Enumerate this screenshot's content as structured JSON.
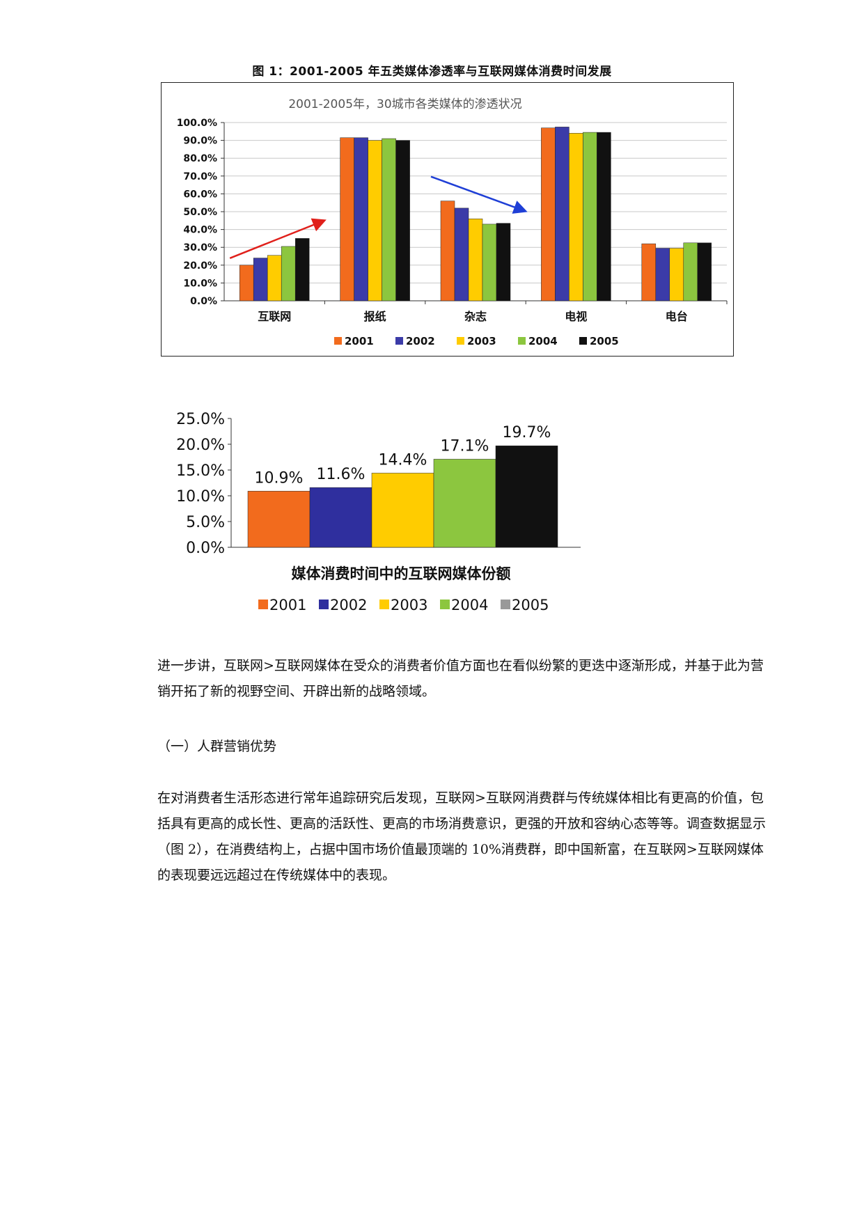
{
  "figure_caption": "图 1：2001-2005 年五类媒体渗透率与互联网媒体消费时间发展",
  "chart_data": [
    {
      "type": "bar",
      "title": "2001-2005年，30城市各类媒体的渗透状况",
      "categories": [
        "互联网",
        "报纸",
        "杂志",
        "电视",
        "电台"
      ],
      "series": [
        {
          "name": "2001",
          "color": "#f26b1d",
          "values": [
            20.0,
            91.5,
            56.0,
            97.0,
            32.0
          ]
        },
        {
          "name": "2002",
          "color": "#3b3ba8",
          "values": [
            24.0,
            91.5,
            52.0,
            97.5,
            29.5
          ]
        },
        {
          "name": "2003",
          "color": "#ffcc00",
          "values": [
            25.5,
            90.0,
            46.0,
            94.0,
            29.5
          ]
        },
        {
          "name": "2004",
          "color": "#8cc63f",
          "values": [
            30.5,
            91.0,
            43.0,
            94.5,
            32.5
          ]
        },
        {
          "name": "2005",
          "color": "#111111",
          "values": [
            35.0,
            90.0,
            43.5,
            94.5,
            32.5
          ]
        }
      ],
      "ylim": [
        0,
        100
      ],
      "yticks": [
        "0.0%",
        "10.0%",
        "20.0%",
        "30.0%",
        "40.0%",
        "50.0%",
        "60.0%",
        "70.0%",
        "80.0%",
        "90.0%",
        "100.0%"
      ],
      "grid": true,
      "legend": "bottom",
      "annotations": [
        {
          "category": "互联网",
          "direction": "up",
          "color": "#e0201b"
        },
        {
          "category": "杂志",
          "direction": "down",
          "color": "#1f3fd6"
        }
      ]
    },
    {
      "type": "bar",
      "xlabel": "媒体消费时间中的互联网媒体份额",
      "categories": [
        "2001",
        "2002",
        "2003",
        "2004",
        "2005"
      ],
      "values": [
        10.9,
        11.6,
        14.4,
        17.1,
        19.7
      ],
      "data_labels": [
        "10.9%",
        "11.6%",
        "14.4%",
        "17.1%",
        "19.7%"
      ],
      "colors": [
        "#f26b1d",
        "#2f2f9e",
        "#ffcc00",
        "#8cc63f",
        "#111111"
      ],
      "legend_colors": [
        "#f26b1d",
        "#2f2f9e",
        "#ffcc00",
        "#8cc63f",
        "#999999"
      ],
      "ylim": [
        0,
        25
      ],
      "yticks": [
        "0.0%",
        "5.0%",
        "10.0%",
        "15.0%",
        "20.0%",
        "25.0%"
      ],
      "grid": false,
      "legend": "bottom"
    }
  ],
  "paragraphs": {
    "p1": "进一步讲，互联网>互联网媒体在受众的消费者价值方面也在看似纷繁的更迭中逐渐形成，并基于此为营销开拓了新的视野空间、开辟出新的战略领域。",
    "heading": "（一）人群营销优势",
    "p2": "在对消费者生活形态进行常年追踪研究后发现，互联网>互联网消费群与传统媒体相比有更高的价值，包括具有更高的成长性、更高的活跃性、更高的市场消费意识，更强的开放和容纳心态等等。调查数据显示（图 2），在消费结构上，占据中国市场价值最顶端的 10%消费群，即中国新富，在互联网>互联网媒体的表现要远远超过在传统媒体中的表现。"
  }
}
